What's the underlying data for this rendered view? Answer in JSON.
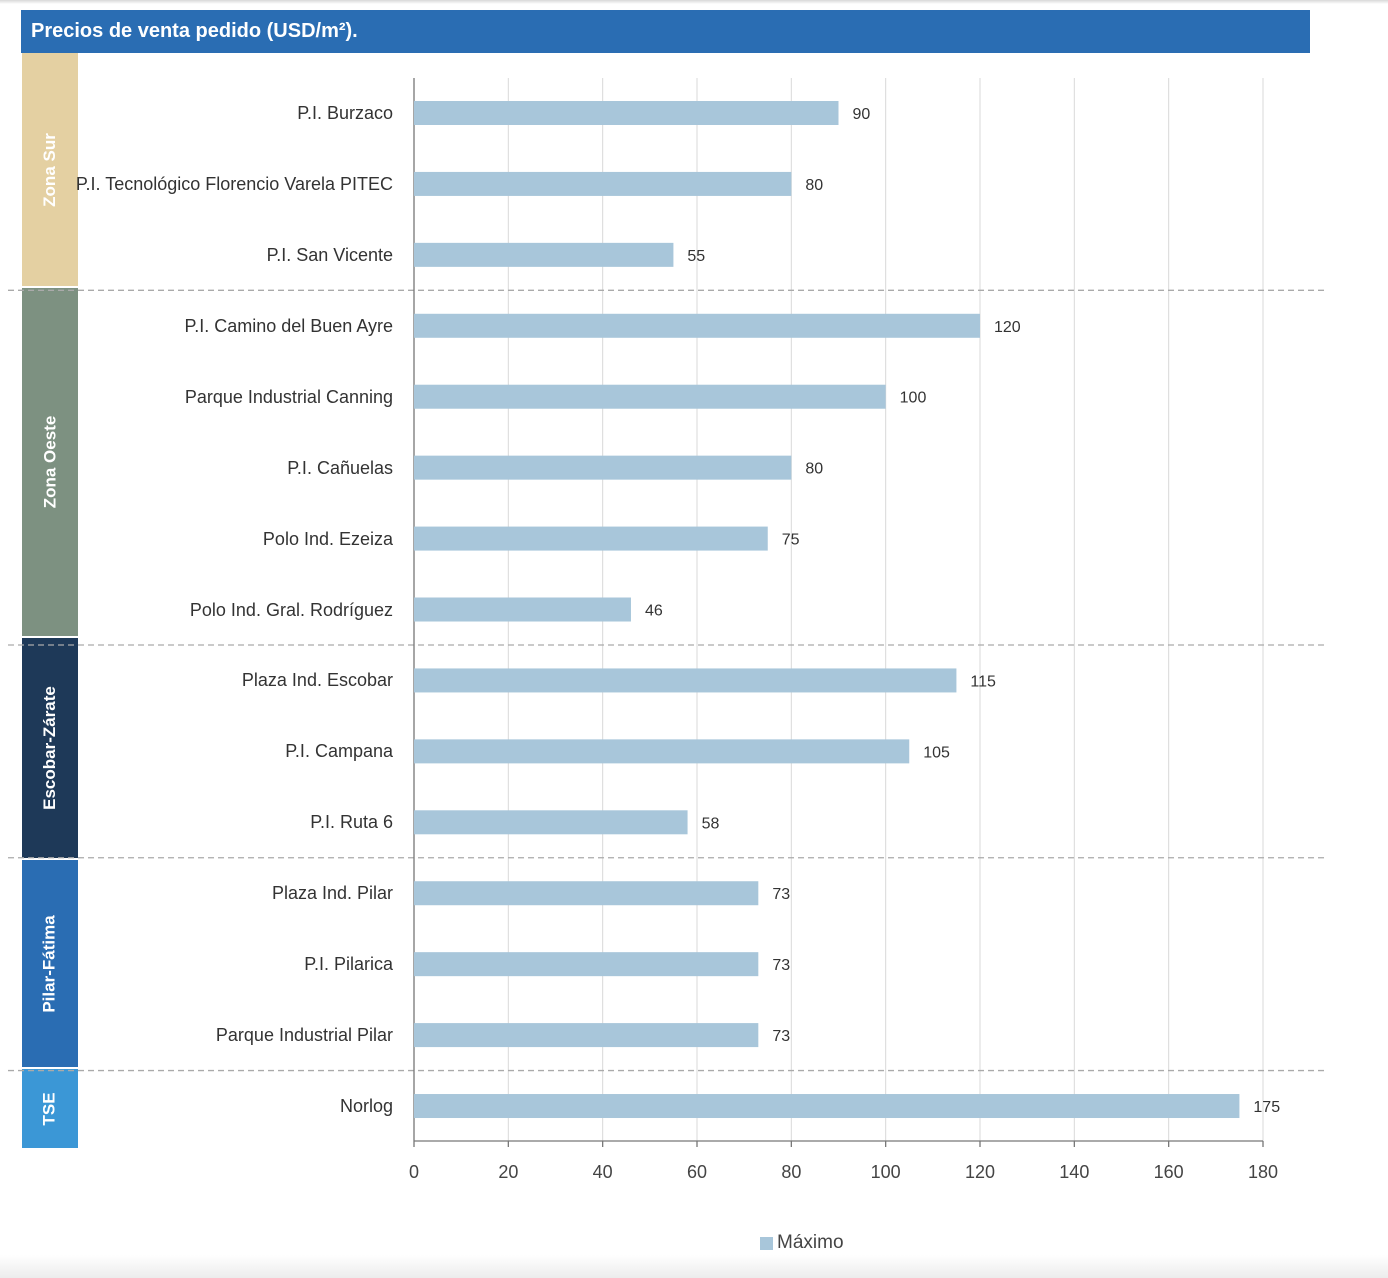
{
  "title": "Precios de venta pedido (USD/m²).",
  "colors": {
    "header": "#2a6db3",
    "bar": "#a8c6da",
    "zone_sur": "#e4d0a2",
    "zone_oeste": "#7d9181",
    "zone_escobar": "#1e3958",
    "zone_pilar": "#2a6db3",
    "zone_tse": "#3b97d6"
  },
  "zones": [
    {
      "label": "Zona Sur",
      "color": "#e4d0a2"
    },
    {
      "label": "Zona Oeste",
      "color": "#7d9181"
    },
    {
      "label": "Escobar-Zárate",
      "color": "#1e3958"
    },
    {
      "label": "Pilar-Fátima",
      "color": "#2a6db3"
    },
    {
      "label": "TSE",
      "color": "#3b97d6"
    }
  ],
  "legend": {
    "label": "Máximo"
  },
  "chart_data": {
    "type": "bar",
    "orientation": "horizontal",
    "categories": [
      "P.I. Burzaco",
      "P.I. Tecnológico Florencio Varela PITEC",
      "P.I. San Vicente",
      "P.I. Camino del Buen Ayre",
      "Parque Industrial Canning",
      "P.I. Cañuelas",
      "Polo Ind. Ezeiza",
      "Polo Ind. Gral. Rodríguez",
      "Plaza Ind. Escobar",
      "P.I. Campana",
      "P.I. Ruta 6",
      "Plaza Ind. Pilar",
      "P.I. Pilarica",
      "Parque Industrial Pilar",
      "Norlog"
    ],
    "series": [
      {
        "name": "Máximo",
        "values": [
          90,
          80,
          55,
          120,
          100,
          80,
          75,
          46,
          115,
          105,
          58,
          73,
          73,
          73,
          175
        ]
      }
    ],
    "xlim": [
      0,
      180
    ],
    "xticks": [
      0,
      20,
      40,
      60,
      80,
      100,
      120,
      140,
      160,
      180
    ],
    "grid": true,
    "legend_position": "bottom"
  }
}
